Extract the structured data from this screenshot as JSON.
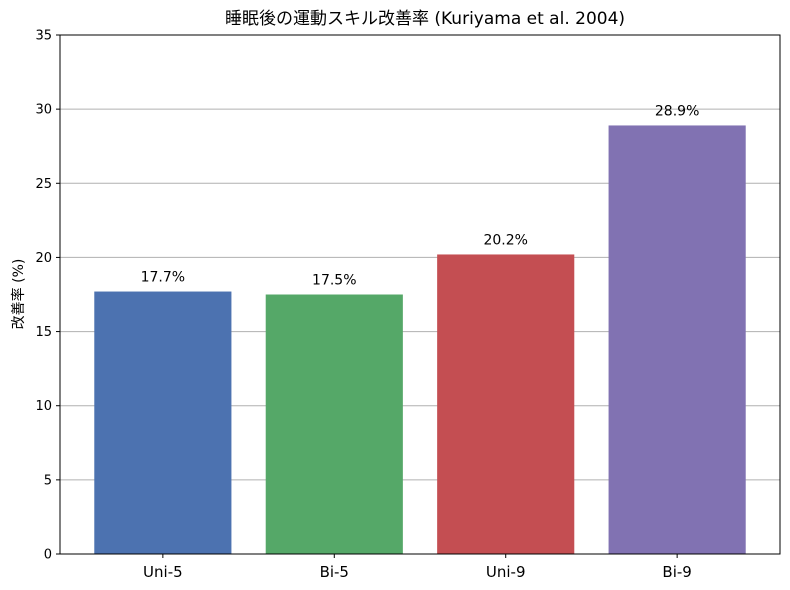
{
  "chart_data": {
    "type": "bar",
    "title": "睡眠後の運動スキル改善率 (Kuriyama et al. 2004)",
    "xlabel": "",
    "ylabel": "改善率 (%)",
    "categories": [
      "Uni-5",
      "Bi-5",
      "Uni-9",
      "Bi-9"
    ],
    "values": [
      17.7,
      17.5,
      20.2,
      28.9
    ],
    "data_labels": [
      "17.7%",
      "17.5%",
      "20.2%",
      "28.9%"
    ],
    "colors": [
      "#4c72b0",
      "#55a868",
      "#c44e52",
      "#8172b2"
    ],
    "ylim": [
      0,
      35
    ],
    "yticks": [
      "0",
      "5",
      "10",
      "15",
      "20",
      "25",
      "30",
      "35"
    ],
    "grid": "y-axis",
    "legend": "none"
  }
}
